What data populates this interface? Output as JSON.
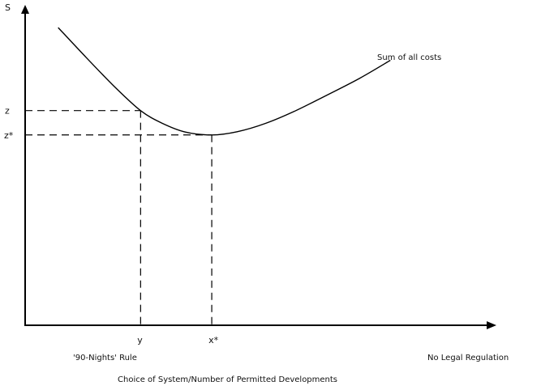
{
  "chart_data": {
    "type": "line",
    "title": "",
    "ylabel": "S",
    "xlabel": "Choice of System/Number of Permitted Developments",
    "x_ticks": [
      {
        "label": "y",
        "x": 0.245
      },
      {
        "label": "x*",
        "x": 0.396
      }
    ],
    "y_ticks": [
      {
        "label": "z",
        "y": 0.67
      },
      {
        "label": "z*",
        "y": 0.594
      }
    ],
    "x_range_labels": {
      "left": "'90-Nights' Rule",
      "right": "No Legal Regulation"
    },
    "xlim": [
      0,
      1
    ],
    "ylim": [
      0,
      1
    ],
    "series": [
      {
        "name": "Sum of all costs",
        "points": [
          [
            0.07,
            0.929
          ],
          [
            0.13,
            0.835
          ],
          [
            0.19,
            0.744
          ],
          [
            0.245,
            0.67
          ],
          [
            0.29,
            0.631
          ],
          [
            0.34,
            0.603
          ],
          [
            0.396,
            0.594
          ],
          [
            0.45,
            0.604
          ],
          [
            0.51,
            0.63
          ],
          [
            0.57,
            0.667
          ],
          [
            0.64,
            0.718
          ],
          [
            0.71,
            0.771
          ],
          [
            0.775,
            0.827
          ]
        ]
      }
    ],
    "guides": [
      {
        "from_x": 0.245,
        "level_y": 0.67
      },
      {
        "from_x": 0.396,
        "level_y": 0.594
      }
    ],
    "grid": false,
    "legend": "none"
  }
}
